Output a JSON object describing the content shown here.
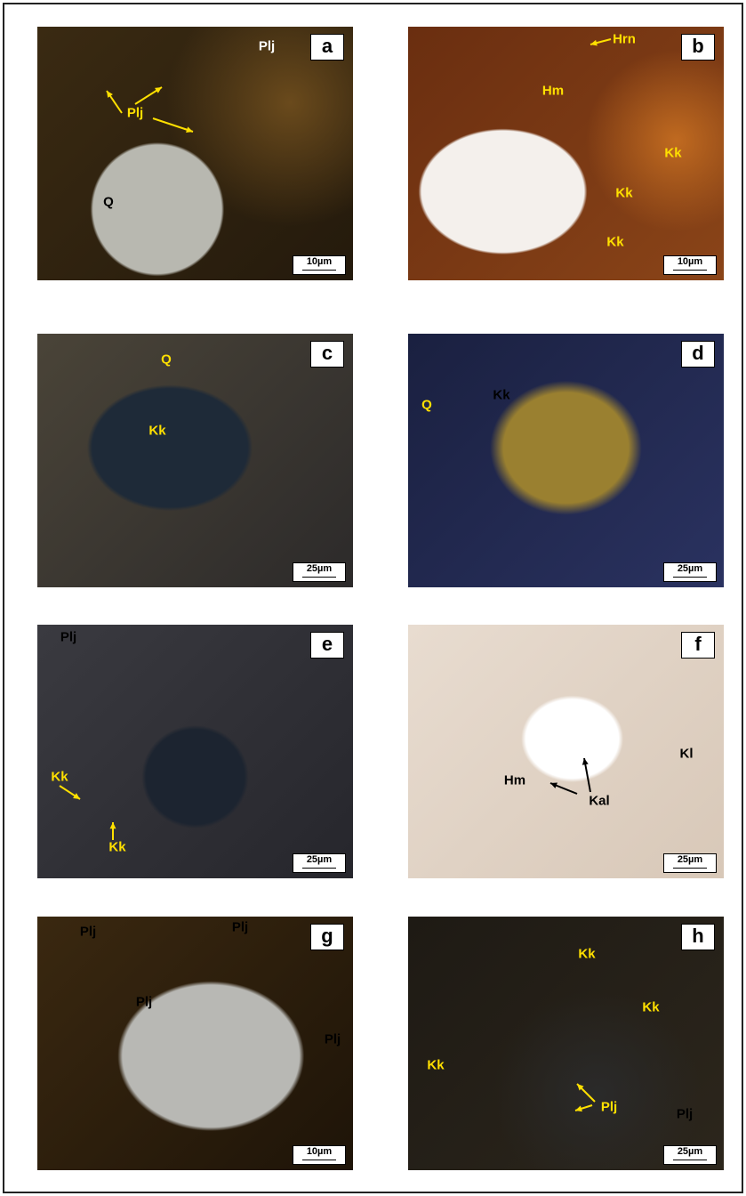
{
  "panels": [
    {
      "letter": "a",
      "scale": "10µm",
      "labels": [
        "Plj",
        "Plj",
        "Q"
      ]
    },
    {
      "letter": "b",
      "scale": "10µm",
      "labels": [
        "Hrn",
        "Hm",
        "Kk",
        "Kk",
        "Kk"
      ]
    },
    {
      "letter": "c",
      "scale": "25µm",
      "labels": [
        "Q",
        "Kk"
      ]
    },
    {
      "letter": "d",
      "scale": "25µm",
      "labels": [
        "Q",
        "Kk"
      ]
    },
    {
      "letter": "e",
      "scale": "25µm",
      "labels": [
        "Plj",
        "Kk",
        "Kk"
      ]
    },
    {
      "letter": "f",
      "scale": "25µm",
      "labels": [
        "Hm",
        "Kal",
        "Kl"
      ]
    },
    {
      "letter": "g",
      "scale": "10µm",
      "labels": [
        "Plj",
        "Plj",
        "Plj",
        "Plj"
      ]
    },
    {
      "letter": "h",
      "scale": "25µm",
      "labels": [
        "Kk",
        "Kk",
        "Kk",
        "Plj",
        "Plj"
      ]
    }
  ]
}
